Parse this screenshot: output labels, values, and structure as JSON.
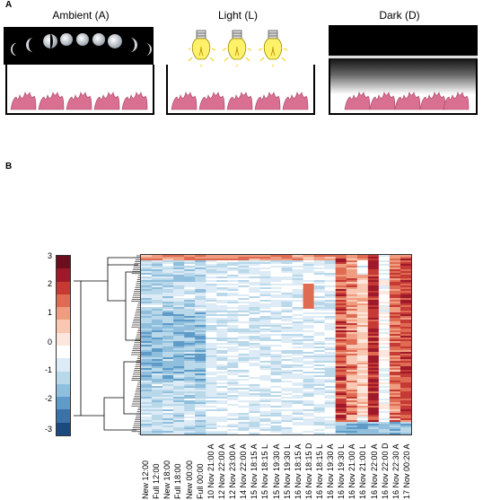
{
  "panel_a": {
    "label": "A",
    "conditions": [
      {
        "title": "Ambient (A)",
        "icon": "moon-phases-icon"
      },
      {
        "title": "Light (L)",
        "icon": "light-bulb-icon"
      },
      {
        "title": "Dark (D)",
        "icon": "dark-gradient-icon"
      }
    ]
  },
  "panel_b": {
    "label": "B",
    "color_scale": {
      "ticks": [
        "3",
        "2",
        "1",
        "0",
        "-1",
        "-2",
        "-3"
      ],
      "colors": [
        "#6b0f1f",
        "#9e1a2a",
        "#c53a35",
        "#de6b52",
        "#f09c80",
        "#f8c8b3",
        "#fbe7dd",
        "#ffffff",
        "#dcebf5",
        "#b9d8ea",
        "#8fbfdd",
        "#5e9bc8",
        "#3a73aa",
        "#1c4a80"
      ]
    },
    "columns": [
      "New 12:00",
      "Full 12:00",
      "New 18:00",
      "Full 18:00",
      "New 00:00",
      "Full 00:00",
      "10 Nov 21:00 A",
      "12 Nov 22:00 A",
      "12 Nov 23:00 A",
      "14 Nov 22:00 A",
      "15 Nov 18:15 A",
      "15 Nov 18:15 L",
      "15 Nov 19:30 A",
      "15 Nov 19:30 L",
      "16 Nov 18:15 A",
      "16 Nov 18:15 D",
      "16 Nov 18:15 L",
      "16 Nov 19:30 A",
      "16 Nov 19:30 L",
      "16 Nov 21:00 A",
      "16 Nov 21:00 L",
      "16 Nov 22:00 A",
      "16 Nov 22:00 D",
      "16 Nov 22:30 A",
      "17 Nov 00:20 A"
    ]
  }
}
